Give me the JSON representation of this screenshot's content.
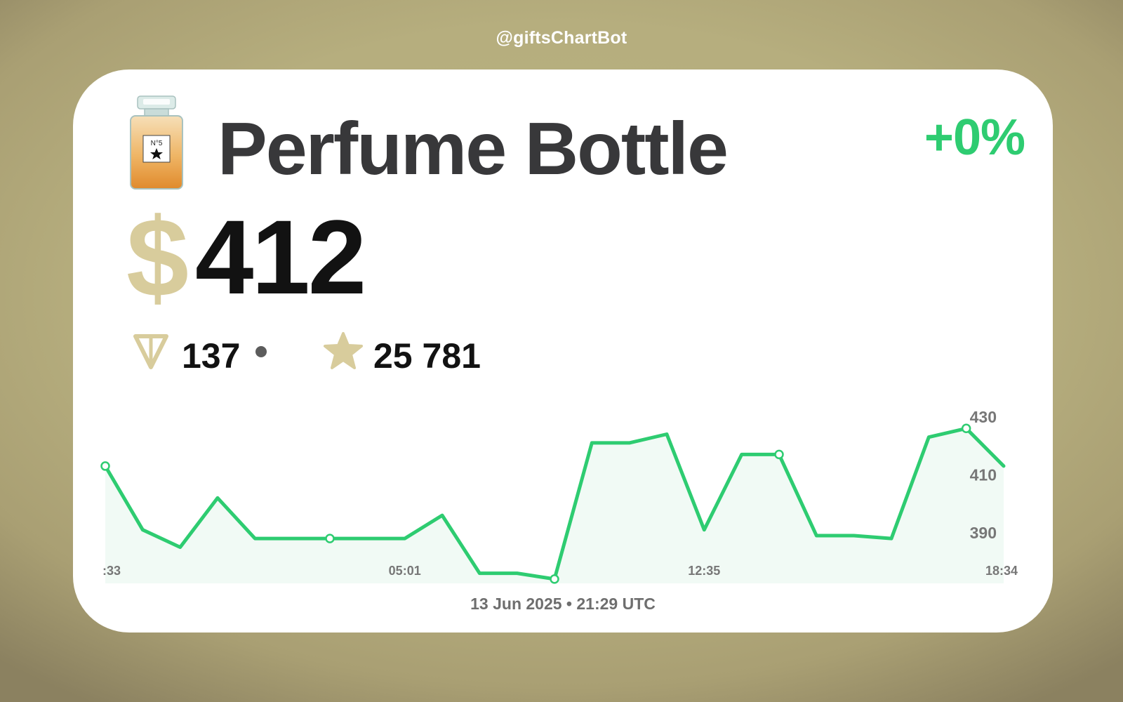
{
  "header": {
    "bot_handle": "@giftsChartBot"
  },
  "card": {
    "gift_name": "Perfume Bottle",
    "change": "+0%",
    "currency_symbol": "$",
    "price_usd": "412",
    "ton_price": "137",
    "stars_price": "25 781",
    "timestamp": "13 Jun 2025 • 21:29 UTC"
  },
  "icons": {
    "gift": "perfume-bottle-icon",
    "ton": "ton-icon",
    "stars": "star-icon",
    "live": "live-dot-icon"
  },
  "colors": {
    "line": "#2ecc71",
    "area": "#f1faf5",
    "accent": "#d8cc9c",
    "title": "#38383a",
    "price": "#121212"
  },
  "chart_data": {
    "type": "area",
    "y_values": [
      413,
      391,
      385,
      402,
      388,
      388,
      388,
      388,
      388,
      396,
      376,
      376,
      374,
      421,
      421,
      424,
      391,
      417,
      417,
      389,
      389,
      388,
      423,
      426,
      413
    ],
    "marked_indices": [
      0,
      6,
      12,
      18,
      23
    ],
    "ylim": [
      373,
      436
    ],
    "y_ticks": [
      "430",
      "410",
      "390"
    ],
    "x_tick_labels": [
      ":33",
      "05:01",
      "12:35",
      "18:34"
    ],
    "grid": false,
    "legend": "none"
  }
}
